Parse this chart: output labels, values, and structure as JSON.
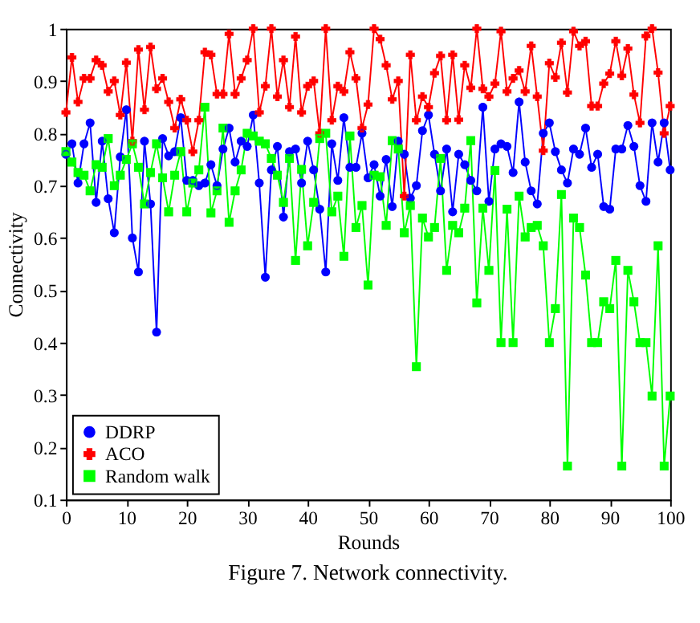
{
  "chart_data": {
    "type": "line",
    "xlabel": "Rounds",
    "ylabel": "Connectivity",
    "annotations": [
      "Figure 7. Network connectivity."
    ],
    "x": [
      0,
      1,
      2,
      3,
      4,
      5,
      6,
      7,
      8,
      9,
      10,
      11,
      12,
      13,
      14,
      15,
      16,
      17,
      18,
      19,
      20,
      21,
      22,
      23,
      24,
      25,
      26,
      27,
      28,
      29,
      30,
      31,
      32,
      33,
      34,
      35,
      36,
      37,
      38,
      39,
      40,
      41,
      42,
      43,
      44,
      45,
      46,
      47,
      48,
      49,
      50,
      51,
      52,
      53,
      54,
      55,
      56,
      57,
      58,
      59,
      60,
      61,
      62,
      63,
      64,
      65,
      66,
      67,
      68,
      69,
      70,
      71,
      72,
      73,
      74,
      75,
      76,
      77,
      78,
      79,
      80,
      81,
      82,
      83,
      84,
      85,
      86,
      87,
      88,
      89,
      90,
      91,
      92,
      93,
      94,
      95,
      96,
      97,
      98,
      99,
      100
    ],
    "series": [
      {
        "name": "DDRP",
        "color": "#0000ff",
        "marker": "circle",
        "values": [
          0.76,
          0.78,
          0.705,
          0.78,
          0.82,
          0.668,
          0.785,
          0.675,
          0.61,
          0.755,
          0.845,
          0.6,
          0.535,
          0.785,
          0.665,
          0.42,
          0.79,
          0.757,
          0.765,
          0.83,
          0.71,
          0.71,
          0.7,
          0.705,
          0.74,
          0.7,
          0.77,
          0.81,
          0.745,
          0.785,
          0.775,
          0.835,
          0.705,
          0.525,
          0.73,
          0.775,
          0.64,
          0.765,
          0.77,
          0.705,
          0.785,
          0.73,
          0.655,
          0.535,
          0.78,
          0.71,
          0.83,
          0.735,
          0.735,
          0.8,
          0.715,
          0.74,
          0.68,
          0.75,
          0.66,
          0.785,
          0.76,
          0.676,
          0.7,
          0.805,
          0.835,
          0.76,
          0.69,
          0.77,
          0.65,
          0.76,
          0.74,
          0.71,
          0.69,
          0.85,
          0.67,
          0.77,
          0.78,
          0.775,
          0.725,
          0.86,
          0.745,
          0.69,
          0.665,
          0.8,
          0.82,
          0.765,
          0.73,
          0.705,
          0.77,
          0.76,
          0.81,
          0.735,
          0.76,
          0.66,
          0.655,
          0.77,
          0.77,
          0.815,
          0.775,
          0.7,
          0.67,
          0.82,
          0.745,
          0.82,
          0.73
        ]
      },
      {
        "name": "ACO",
        "color": "#ff0000",
        "marker": "cross",
        "values": [
          0.84,
          0.945,
          0.86,
          0.905,
          0.905,
          0.94,
          0.93,
          0.88,
          0.9,
          0.835,
          0.935,
          0.785,
          0.96,
          0.845,
          0.965,
          0.885,
          0.905,
          0.86,
          0.81,
          0.865,
          0.825,
          0.765,
          0.825,
          0.955,
          0.95,
          0.875,
          0.875,
          0.99,
          0.875,
          0.905,
          0.94,
          1.0,
          0.84,
          0.89,
          1.0,
          0.87,
          0.94,
          0.85,
          0.985,
          0.84,
          0.89,
          0.9,
          0.8,
          1.0,
          0.825,
          0.89,
          0.88,
          0.955,
          0.905,
          0.81,
          0.855,
          1.0,
          0.98,
          0.93,
          0.865,
          0.9,
          0.68,
          0.95,
          0.825,
          0.87,
          0.85,
          0.915,
          0.948,
          0.825,
          0.95,
          0.826,
          0.93,
          0.887,
          1.0,
          0.885,
          0.87,
          0.895,
          0.995,
          0.88,
          0.905,
          0.92,
          0.88,
          0.967,
          0.87,
          0.767,
          0.934,
          0.907,
          0.973,
          0.878,
          0.995,
          0.967,
          0.976,
          0.852,
          0.852,
          0.895,
          0.914,
          0.976,
          0.91,
          0.962,
          0.874,
          0.82,
          0.986,
          1.0,
          0.916,
          0.8,
          0.852
        ]
      },
      {
        "name": "Random walk",
        "color": "#00ff00",
        "marker": "square",
        "values": [
          0.765,
          0.745,
          0.725,
          0.72,
          0.69,
          0.74,
          0.735,
          0.79,
          0.7,
          0.72,
          0.75,
          0.78,
          0.735,
          0.665,
          0.725,
          0.78,
          0.715,
          0.65,
          0.72,
          0.765,
          0.65,
          0.705,
          0.73,
          0.85,
          0.648,
          0.69,
          0.81,
          0.63,
          0.69,
          0.73,
          0.8,
          0.795,
          0.785,
          0.78,
          0.752,
          0.72,
          0.668,
          0.752,
          0.557,
          0.731,
          0.585,
          0.668,
          0.79,
          0.8,
          0.65,
          0.68,
          0.565,
          0.795,
          0.62,
          0.662,
          0.51,
          0.72,
          0.717,
          0.624,
          0.786,
          0.77,
          0.61,
          0.662,
          0.354,
          0.638,
          0.602,
          0.62,
          0.752,
          0.538,
          0.624,
          0.61,
          0.657,
          0.786,
          0.476,
          0.657,
          0.538,
          0.729,
          0.4,
          0.655,
          0.4,
          0.68,
          0.602,
          0.62,
          0.624,
          0.585,
          0.4,
          0.465,
          0.683,
          0.164,
          0.638,
          0.62,
          0.529,
          0.4,
          0.4,
          0.478,
          0.465,
          0.557,
          0.164,
          0.538,
          0.478,
          0.4,
          0.4,
          0.298,
          0.585,
          0.164,
          0.298
        ]
      }
    ],
    "xlim": [
      0,
      100
    ],
    "xticks": [
      0,
      10,
      20,
      30,
      40,
      50,
      60,
      70,
      80,
      90,
      100
    ],
    "ylim": [
      0.1,
      1
    ],
    "yticks": [
      0.1,
      0.2,
      0.3,
      0.4,
      0.5,
      0.6,
      0.7,
      0.8,
      0.9,
      {
        "value": 1,
        "label": "1"
      }
    ],
    "grid": false,
    "legend": "bottom left",
    "line_style": "solid"
  }
}
